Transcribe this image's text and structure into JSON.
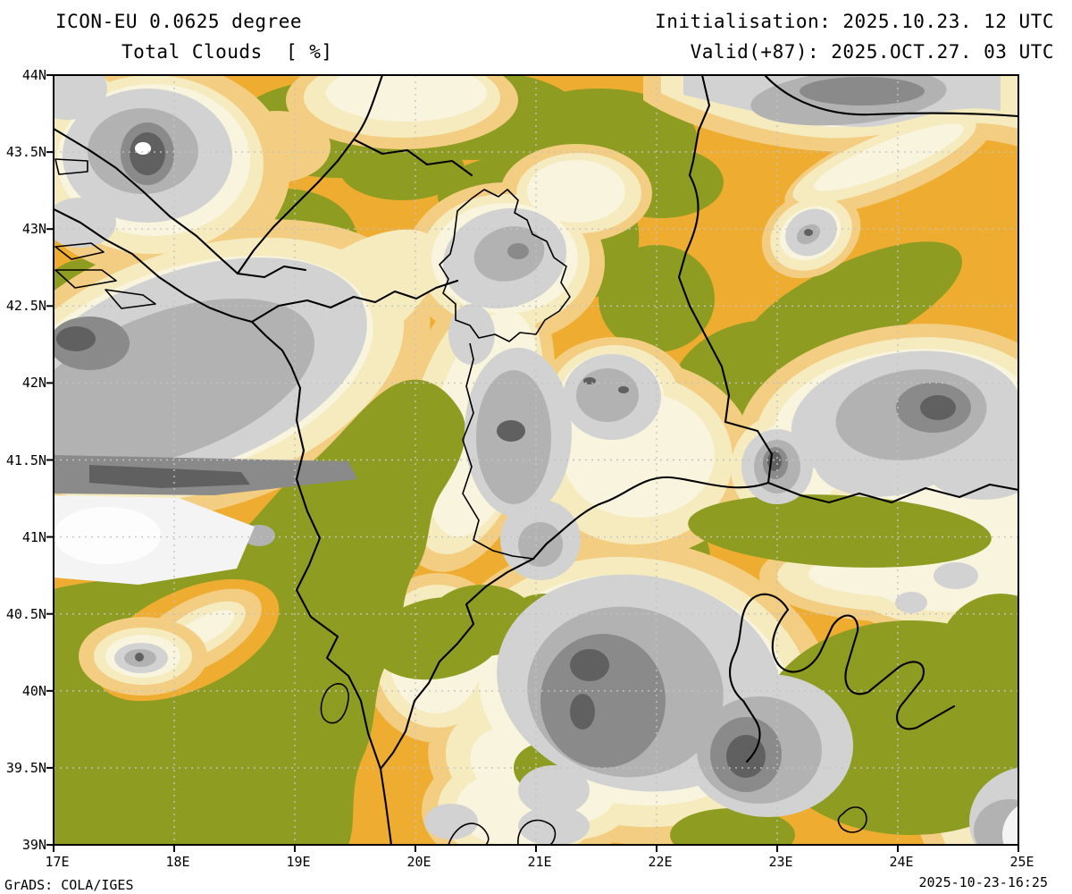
{
  "header": {
    "model_line": "ICON-EU 0.0625 degree",
    "variable_line": "Total Clouds  [ %]",
    "init_line": "Initialisation: 2025.10.23. 12 UTC",
    "valid_line": "Valid(+87): 2025.OCT.27. 03 UTC"
  },
  "footer": {
    "credit": "GrADS: COLA/IGES",
    "timestamp": "2025-10-23-16:25"
  },
  "map": {
    "x_axis": {
      "labels": [
        "17E",
        "18E",
        "19E",
        "20E",
        "21E",
        "22E",
        "23E",
        "24E",
        "25E"
      ]
    },
    "y_axis": {
      "labels": [
        "44N",
        "43.5N",
        "43N",
        "42.5N",
        "42N",
        "41.5N",
        "41N",
        "40.5N",
        "40N",
        "39.5N",
        "39N"
      ]
    },
    "palette": {
      "olive": "#8e9d22",
      "orange": "#eeac30",
      "tan": "#f3cd82",
      "cream": "#f5ebbe",
      "pale": "#f9f4dd",
      "gray_light": "#d2d2d2",
      "gray_mid": "#b2b2b2",
      "gray_dark": "#8a8a8a",
      "gray_darkest": "#606060",
      "white_cloud": "#f4f4f4",
      "border": "#000000",
      "grid": "#c3c3c3"
    }
  }
}
